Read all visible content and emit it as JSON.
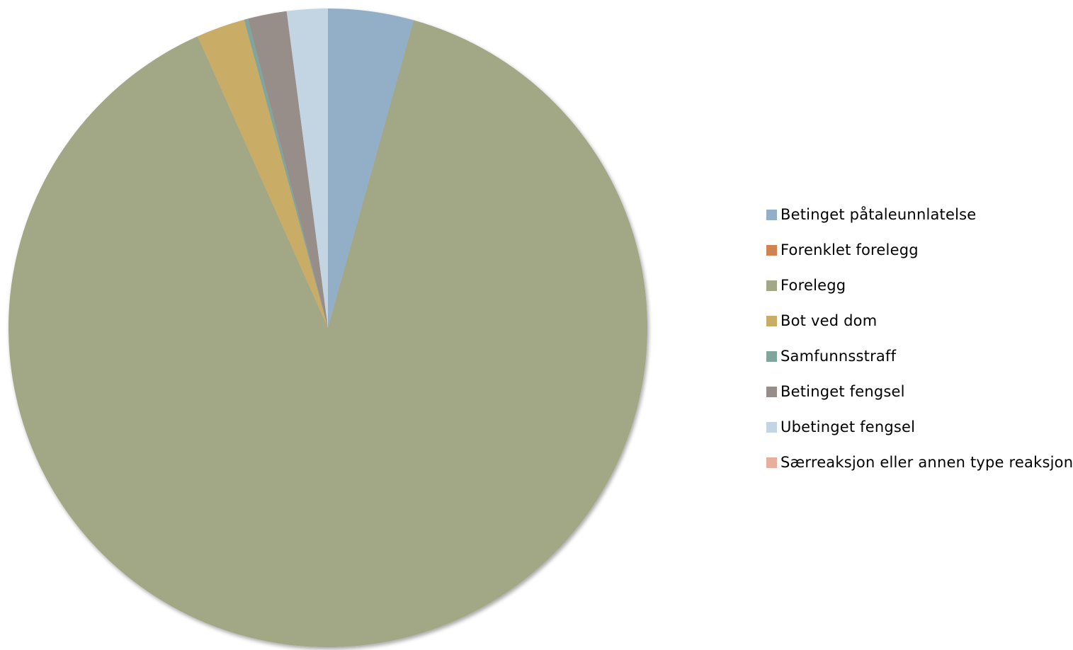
{
  "chart_data": {
    "type": "pie",
    "title": "",
    "start_angle_deg": 0,
    "direction": "clockwise",
    "legend_position": "right",
    "slices": [
      {
        "label": "Betinget påtaleunnlatelse",
        "value": 4.4,
        "color": "#93AFC8"
      },
      {
        "label": "Forenklet forelegg",
        "value": 0.0,
        "color": "#D0834E"
      },
      {
        "label": "Forelegg",
        "value": 90.5,
        "color": "#A2A785"
      },
      {
        "label": "Bot ved dom",
        "value": 2.5,
        "color": "#C9AD66"
      },
      {
        "label": "Samfunnsstraff",
        "value": 0.2,
        "color": "#7FA59C"
      },
      {
        "label": "Betinget fengsel",
        "value": 2.0,
        "color": "#978D89"
      },
      {
        "label": "Ubetinget fengsel",
        "value": 2.1,
        "color": "#C3D4E3"
      },
      {
        "label": "Særreaksjon eller annen type reaksjon",
        "value": 0.0,
        "color": "#E6B09C"
      }
    ]
  }
}
